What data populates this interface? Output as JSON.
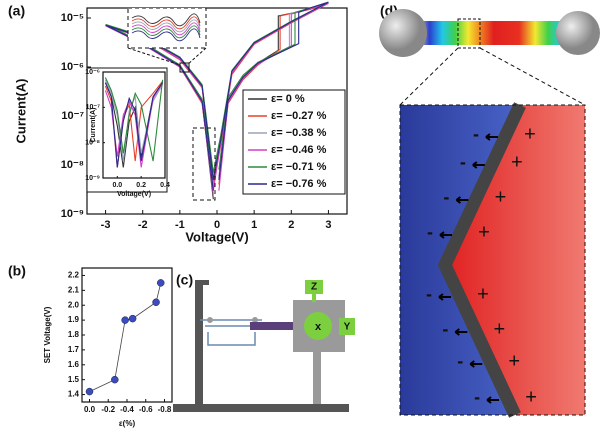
{
  "chart_data": [
    {
      "type": "line",
      "panel_label": "(a)",
      "x_label": "Voltage(V)",
      "y_label": "Current(A)",
      "log_y": true,
      "legend": "right",
      "xlim": [
        -3.5,
        3.5
      ],
      "xticks": [
        -3,
        -2,
        -1,
        0,
        1,
        2,
        3
      ],
      "ylim": [
        1e-09,
        1.6e-05
      ],
      "yticks": [
        {
          "value": 1e-09,
          "label": "10⁻⁹"
        },
        {
          "value": 1e-08,
          "label": "10⁻⁸"
        },
        {
          "value": 1e-07,
          "label": "10⁻⁷"
        },
        {
          "value": 1e-06,
          "label": "10⁻⁶"
        },
        {
          "value": 1e-05,
          "label": "10⁻⁵"
        }
      ],
      "series": [
        {
          "name": "ε= 0 %",
          "color": "#333333",
          "x": [
            0.05,
            0.3,
            0.7,
            1.1,
            1.65,
            1.65,
            2.5,
            3,
            2,
            1,
            0.4,
            0.1,
            -0.1,
            -0.4,
            -1,
            -2,
            -3,
            -2,
            -1,
            -0.4,
            -0.1
          ],
          "values": [
            5e-09,
            2e-07,
            6e-07,
            1.2e-06,
            2.2e-06,
            1.1e-05,
            1.5e-05,
            2e-05,
            8e-06,
            3e-06,
            8e-07,
            3e-08,
            5e-09,
            4e-07,
            1.5e-06,
            4e-06,
            7e-06,
            3e-06,
            1e-06,
            2e-07,
            2e-09
          ]
        },
        {
          "name": "ε= −0.27 %",
          "color": "#e8402a",
          "x": [
            0.05,
            0.3,
            0.7,
            1.1,
            1.7,
            1.7,
            2.5,
            3,
            2,
            1,
            0.4,
            0.1,
            -0.1,
            -0.4,
            -1,
            -2,
            -3,
            -2,
            -1,
            -0.4,
            -0.1
          ],
          "values": [
            4e-09,
            1.8e-07,
            5.5e-07,
            1.1e-06,
            2.3e-06,
            1.1e-05,
            1.5e-05,
            2e-05,
            8e-06,
            2.9e-06,
            7e-07,
            2.5e-08,
            4e-09,
            3.8e-07,
            1.4e-06,
            4e-06,
            7e-06,
            3e-06,
            1e-06,
            1.8e-07,
            3e-09
          ]
        },
        {
          "name": "ε= −0.38 %",
          "color": "#9aa3b8",
          "x": [
            0.05,
            0.3,
            0.7,
            1.1,
            1.95,
            1.95,
            2.5,
            3,
            2,
            1,
            0.4,
            0.1,
            -0.1,
            -0.4,
            -1,
            -2,
            -3,
            -2,
            -1,
            -0.4,
            -0.1
          ],
          "values": [
            6e-09,
            2.2e-07,
            6.5e-07,
            1.2e-06,
            2.6e-06,
            1.2e-05,
            1.6e-05,
            2e-05,
            8.5e-06,
            3.1e-06,
            8e-07,
            3.5e-08,
            6e-09,
            4.2e-07,
            1.5e-06,
            4.2e-06,
            7.2e-06,
            3.1e-06,
            1.1e-06,
            2.1e-07,
            4e-09
          ]
        },
        {
          "name": "ε= −0.46 %",
          "color": "#d23fc8",
          "x": [
            0.05,
            0.3,
            0.7,
            1.1,
            2,
            2,
            2.5,
            3,
            2,
            1,
            0.4,
            0.1,
            -0.1,
            -0.4,
            -1,
            -2,
            -3,
            -2,
            -1,
            -0.4,
            -0.1
          ],
          "values": [
            3e-09,
            1.9e-07,
            5.8e-07,
            1.15e-06,
            2.7e-06,
            1.2e-05,
            1.55e-05,
            2e-05,
            8.2e-06,
            3e-06,
            7.5e-07,
            2.8e-08,
            3e-09,
            3.9e-07,
            1.45e-06,
            4e-06,
            7e-06,
            2.9e-06,
            1e-06,
            1.9e-07,
            2.5e-09
          ]
        },
        {
          "name": "ε= −0.71 %",
          "color": "#2e8b3c",
          "x": [
            0.05,
            0.3,
            0.7,
            1.1,
            2.1,
            2.1,
            2.5,
            3,
            2,
            1,
            0.4,
            0.1,
            -0.1,
            -0.4,
            -1,
            -2,
            -3,
            -2,
            -1,
            -0.4,
            -0.1
          ],
          "values": [
            8e-09,
            2.4e-07,
            6.8e-07,
            1.25e-06,
            2.9e-06,
            1.3e-05,
            1.6e-05,
            2.1e-05,
            8.6e-06,
            3.2e-06,
            8.5e-07,
            4e-08,
            7e-09,
            4.4e-07,
            1.6e-06,
            4.3e-06,
            7.4e-06,
            3.2e-06,
            1.1e-06,
            2.2e-07,
            5e-09
          ]
        },
        {
          "name": "ε= −0.76 %",
          "color": "#2a2a8c",
          "x": [
            0.05,
            0.3,
            0.7,
            1.1,
            2.2,
            2.2,
            2.5,
            3,
            2,
            1,
            0.4,
            0.1,
            -0.1,
            -0.4,
            -1,
            -2,
            -3,
            -2,
            -1,
            -0.4,
            -0.1
          ],
          "values": [
            5e-09,
            2.1e-07,
            6.2e-07,
            1.2e-06,
            3e-06,
            1.3e-05,
            1.6e-05,
            2.1e-05,
            8.4e-06,
            3.1e-06,
            8.2e-07,
            3.2e-08,
            5e-09,
            4.1e-07,
            1.55e-06,
            4.1e-06,
            7.1e-06,
            3e-06,
            1.05e-06,
            2e-07,
            3e-09
          ]
        }
      ]
    },
    {
      "type": "line",
      "x_label": "Voltage(V)",
      "y_label": "Current(A)",
      "log_y": true,
      "xlim": [
        -0.12,
        0.4
      ],
      "xticks": [
        {
          "value": 0,
          "label": "0.0"
        },
        0.2,
        0.4
      ],
      "ylim": [
        1e-09,
        1e-06
      ],
      "yticks": [
        {
          "value": 1e-09,
          "label": "10⁻⁹"
        },
        {
          "value": 1e-08,
          "label": "10⁻⁸"
        },
        {
          "value": 1e-07,
          "label": "10⁻⁷"
        },
        {
          "value": 1e-06,
          "label": "10⁻⁶"
        }
      ],
      "series": [
        {
          "color": "#333333",
          "x": [
            -0.1,
            -0.05,
            0,
            0.05,
            0.1,
            0.15,
            0.2,
            0.3,
            0.38
          ],
          "values": [
            5e-07,
            2e-07,
            3e-08,
            2e-09,
            4e-08,
            1e-07,
            4e-09,
            2e-07,
            5e-07
          ]
        },
        {
          "color": "#e8402a",
          "x": [
            -0.1,
            -0.05,
            0,
            0.05,
            0.1,
            0.15,
            0.2,
            0.3,
            0.38
          ],
          "values": [
            4e-07,
            1.5e-07,
            2e-09,
            5e-08,
            1.2e-07,
            3e-09,
            1e-07,
            2.5e-07,
            5.5e-07
          ]
        },
        {
          "color": "#9aa3b8",
          "x": [
            -0.1,
            -0.05,
            0,
            0.05,
            0.1,
            0.15,
            0.2,
            0.3,
            0.38
          ],
          "values": [
            6e-07,
            2.5e-07,
            6e-08,
            3e-09,
            8e-08,
            2e-07,
            5e-09,
            1.5e-07,
            4.5e-07
          ]
        },
        {
          "color": "#d23fc8",
          "x": [
            -0.1,
            -0.05,
            0,
            0.05,
            0.1,
            0.15,
            0.2,
            0.3,
            0.38
          ],
          "values": [
            3e-07,
            1e-07,
            4e-09,
            6e-08,
            1.5e-07,
            6e-08,
            2e-09,
            1.8e-07,
            5e-07
          ]
        },
        {
          "color": "#2e8b3c",
          "x": [
            -0.1,
            -0.05,
            0,
            0.05,
            0.1,
            0.15,
            0.2,
            0.3,
            0.38
          ],
          "values": [
            7e-07,
            3e-07,
            8e-08,
            5e-09,
            6e-08,
            2.5e-07,
            1.2e-07,
            3e-09,
            6e-07
          ]
        },
        {
          "color": "#2a2a8c",
          "x": [
            -0.1,
            -0.05,
            0,
            0.05,
            0.1,
            0.15,
            0.2,
            0.3,
            0.38
          ],
          "values": [
            5e-07,
            2e-07,
            2e-09,
            4e-08,
            1.8e-07,
            8e-08,
            3e-09,
            2e-07,
            5e-07
          ]
        }
      ]
    },
    {
      "type": "line",
      "panel_label": "(b)",
      "x_label": "ε(%)",
      "y_label": "SET Voltage(V)",
      "markers": true,
      "xlim": [
        0.08,
        -0.88
      ],
      "xticks": [
        {
          "value": 0,
          "label": "0.0"
        },
        -0.2,
        -0.4,
        -0.6,
        -0.8
      ],
      "ylim": [
        1.35,
        2.25
      ],
      "yticks": [
        1.4,
        1.5,
        1.6,
        1.7,
        1.8,
        1.9,
        {
          "value": 2,
          "label": "2.0"
        },
        2.1,
        2.2
      ],
      "series": [
        {
          "color": "#3b4cc0",
          "x": [
            0,
            -0.27,
            -0.38,
            -0.46,
            -0.71,
            -0.76
          ],
          "values": [
            1.42,
            1.5,
            1.9,
            1.91,
            2.02,
            2.15
          ]
        }
      ]
    }
  ],
  "panel_c": {
    "panel_label": "(c)",
    "axis_z": "Z",
    "axis_x": "x",
    "axis_y": "Y"
  },
  "panel_d": {
    "panel_label": "(d)",
    "minus": [
      "-",
      "-",
      "-",
      "-",
      "-",
      "-",
      "-",
      "-"
    ],
    "plus": [
      "+",
      "+",
      "+",
      "+",
      "+",
      "+",
      "+",
      "+"
    ]
  }
}
